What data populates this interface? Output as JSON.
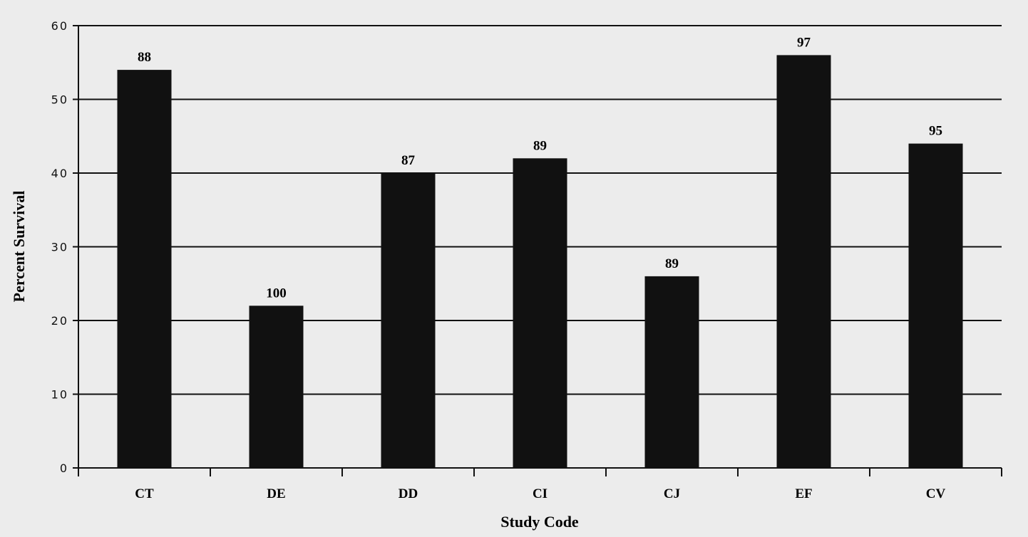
{
  "chart_data": {
    "type": "bar",
    "categories": [
      "CT",
      "DE",
      "DD",
      "CI",
      "CJ",
      "EF",
      "CV"
    ],
    "values": [
      54,
      22,
      40,
      42,
      26,
      56,
      44
    ],
    "data_labels": [
      "88",
      "100",
      "87",
      "89",
      "89",
      "97",
      "95"
    ],
    "xlabel": "Study Code",
    "ylabel": "Percent Survival",
    "ylim": [
      0,
      60
    ],
    "yticks": [
      "0",
      "10",
      "20",
      "30",
      "40",
      "50",
      "60"
    ],
    "grid": true,
    "legend": "none",
    "colors": {
      "bar": "#111111",
      "grid": "#111111",
      "axis": "#111111",
      "background": "#ececec"
    }
  }
}
